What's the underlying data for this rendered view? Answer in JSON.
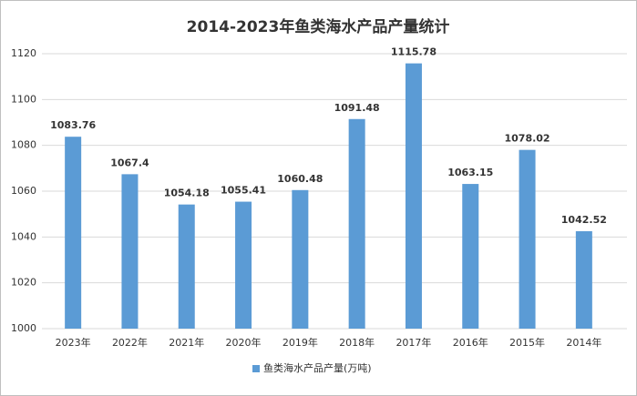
{
  "chart_data": {
    "type": "bar",
    "title": "2014-2023年鱼类海水产品产量统计",
    "categories": [
      "2023年",
      "2022年",
      "2021年",
      "2020年",
      "2019年",
      "2018年",
      "2017年",
      "2016年",
      "2015年",
      "2014年"
    ],
    "series": [
      {
        "name": "鱼类海水产品产量(万吨)",
        "color": "#5b9bd5",
        "values": [
          1083.76,
          1067.4,
          1054.18,
          1055.41,
          1060.48,
          1091.48,
          1115.78,
          1063.15,
          1078.02,
          1042.52
        ]
      }
    ],
    "ylim": [
      1000,
      1120
    ],
    "yticks": [
      1000,
      1020,
      1040,
      1060,
      1080,
      1100,
      1120
    ],
    "grid": true,
    "legend": "bottom"
  }
}
